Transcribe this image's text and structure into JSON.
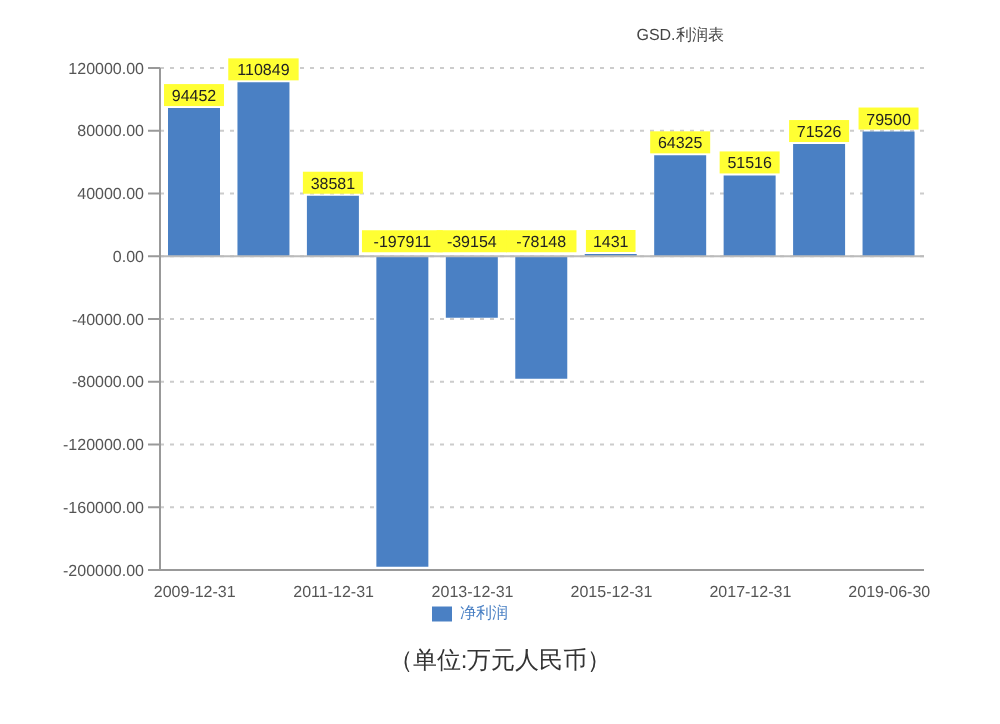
{
  "chart_data": {
    "type": "bar",
    "title": "GSD.利润表",
    "categories": [
      "2009-12-31",
      null,
      "2011-12-31",
      null,
      "2013-12-31",
      null,
      "2015-12-31",
      null,
      "2017-12-31",
      null,
      "2019-06-30"
    ],
    "series": [
      {
        "name": "净利润",
        "color": "#4a80c4",
        "values": [
          94452,
          110849,
          38581,
          -197911,
          -39154,
          -78148,
          1431,
          64325,
          51516,
          71526,
          79500
        ]
      }
    ],
    "ylim": [
      -200000,
      120000
    ],
    "yticks": [
      {
        "value": -200000,
        "label": "-200000.00"
      },
      {
        "value": -160000,
        "label": "-160000.00"
      },
      {
        "value": -120000,
        "label": "-120000.00"
      },
      {
        "value": -80000,
        "label": "-80000.00"
      },
      {
        "value": -40000,
        "label": "-40000.00"
      },
      {
        "value": 0,
        "label": "0.00"
      },
      {
        "value": 40000,
        "label": "40000.00"
      },
      {
        "value": 80000,
        "label": "80000.00"
      },
      {
        "value": 120000,
        "label": "120000.00"
      }
    ],
    "grid": "y",
    "legend": "bottom",
    "data_labels": true,
    "annotations": [
      "（单位:万元人民币）"
    ]
  }
}
